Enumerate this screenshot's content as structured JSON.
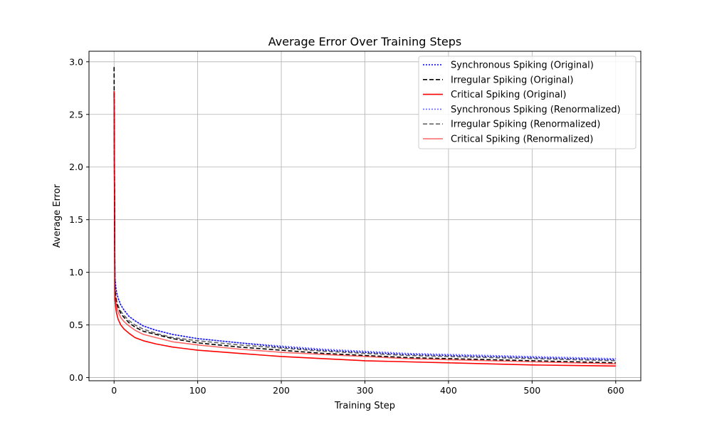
{
  "chart_data": {
    "type": "line",
    "title": "Average Error Over Training Steps",
    "xlabel": "Training Step",
    "ylabel": "Average Error",
    "xlim": [
      -30,
      630
    ],
    "ylim": [
      -0.03,
      3.1
    ],
    "xticks": [
      0,
      100,
      200,
      300,
      400,
      500,
      600
    ],
    "yticks": [
      0.0,
      0.5,
      1.0,
      1.5,
      2.0,
      2.5,
      3.0
    ],
    "ytick_labels": [
      "0.0",
      "0.5",
      "1.0",
      "1.5",
      "2.0",
      "2.5",
      "3.0"
    ],
    "grid": true,
    "legend_position": "top-right",
    "x": [
      0,
      1,
      2,
      3,
      5,
      8,
      12,
      18,
      25,
      35,
      50,
      70,
      100,
      150,
      200,
      250,
      300,
      350,
      400,
      450,
      500,
      550,
      600
    ],
    "series": [
      {
        "name": "Synchronous Spiking (Original)",
        "color": "#0000ff",
        "dash": "2,2",
        "width": 1.6,
        "opacity": 1,
        "values": [
          2.72,
          0.95,
          0.86,
          0.81,
          0.75,
          0.69,
          0.64,
          0.58,
          0.54,
          0.49,
          0.45,
          0.41,
          0.37,
          0.33,
          0.29,
          0.26,
          0.24,
          0.22,
          0.21,
          0.2,
          0.19,
          0.18,
          0.17
        ]
      },
      {
        "name": "Irregular Spiking (Original)",
        "color": "#000000",
        "dash": "6,3",
        "width": 1.6,
        "opacity": 1,
        "values": [
          2.95,
          0.85,
          0.76,
          0.71,
          0.66,
          0.61,
          0.57,
          0.52,
          0.48,
          0.44,
          0.41,
          0.37,
          0.33,
          0.29,
          0.26,
          0.23,
          0.21,
          0.19,
          0.18,
          0.17,
          0.16,
          0.15,
          0.14
        ]
      },
      {
        "name": "Critical Spiking (Original)",
        "color": "#ff0000",
        "dash": "",
        "width": 1.6,
        "opacity": 1,
        "values": [
          2.72,
          0.74,
          0.66,
          0.61,
          0.55,
          0.5,
          0.46,
          0.42,
          0.38,
          0.35,
          0.32,
          0.29,
          0.26,
          0.23,
          0.2,
          0.18,
          0.16,
          0.15,
          0.14,
          0.13,
          0.12,
          0.115,
          0.11
        ]
      },
      {
        "name": "Synchronous Spiking (Renormalized)",
        "color": "#0000ff",
        "dash": "2,2",
        "width": 1.6,
        "opacity": 0.6,
        "values": [
          2.7,
          0.96,
          0.86,
          0.81,
          0.75,
          0.69,
          0.64,
          0.58,
          0.54,
          0.49,
          0.45,
          0.41,
          0.37,
          0.33,
          0.3,
          0.27,
          0.25,
          0.23,
          0.22,
          0.21,
          0.2,
          0.19,
          0.18
        ]
      },
      {
        "name": "Irregular Spiking (Renormalized)",
        "color": "#000000",
        "dash": "6,3",
        "width": 1.6,
        "opacity": 0.6,
        "values": [
          2.7,
          0.87,
          0.78,
          0.73,
          0.68,
          0.63,
          0.59,
          0.54,
          0.5,
          0.46,
          0.42,
          0.38,
          0.35,
          0.31,
          0.28,
          0.25,
          0.23,
          0.21,
          0.2,
          0.19,
          0.18,
          0.17,
          0.16
        ]
      },
      {
        "name": "Critical Spiking (Renormalized)",
        "color": "#ff0000",
        "dash": "",
        "width": 1.6,
        "opacity": 0.6,
        "values": [
          2.72,
          0.8,
          0.72,
          0.67,
          0.62,
          0.57,
          0.53,
          0.49,
          0.45,
          0.41,
          0.38,
          0.34,
          0.31,
          0.27,
          0.24,
          0.22,
          0.2,
          0.18,
          0.17,
          0.16,
          0.15,
          0.14,
          0.13
        ]
      }
    ]
  }
}
